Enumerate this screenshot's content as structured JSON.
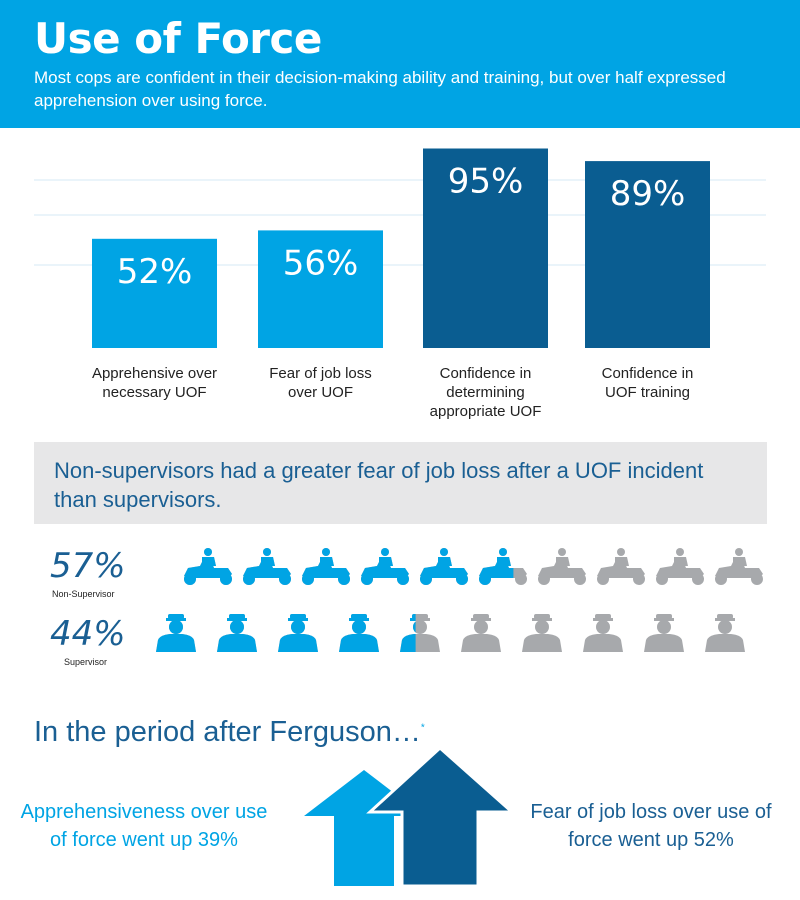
{
  "header": {
    "title": "Use of Force",
    "subtitle": "Most cops are confident in their decision-making ability and training, but over half expressed apprehension over using force."
  },
  "chart_data": [
    {
      "type": "bar",
      "categories": [
        "Apprehensive over necessary UOF",
        "Fear of job loss over UOF",
        "Confidence in determining appropriate UOF",
        "Confidence in UOF training"
      ],
      "category_lines": [
        [
          "Apprehensive over",
          "necessary UOF"
        ],
        [
          "Fear of job loss",
          "over UOF"
        ],
        [
          "Confidence in",
          "determining",
          "appropriate UOF"
        ],
        [
          "Confidence in",
          "UOF training"
        ]
      ],
      "values": [
        52,
        56,
        95,
        89
      ],
      "value_labels": [
        "52%",
        "56%",
        "95%",
        "89%"
      ],
      "bar_colors": [
        "#00a4e4",
        "#00a4e4",
        "#0a5d91",
        "#0a5d91"
      ],
      "ylim": [
        0,
        100
      ],
      "grid": true
    },
    {
      "type": "pictograph",
      "rows": [
        {
          "value": 57,
          "label": "57%",
          "caption": "Non-Supervisor",
          "icon": "police-motorcycle-icon",
          "total_icons": 10
        },
        {
          "value": 44,
          "label": "44%",
          "caption": "Supervisor",
          "icon": "officer-bust-icon",
          "total_icons": 10
        }
      ],
      "fill_color": "#00a4e4",
      "empty_color": "#a7a9ac"
    }
  ],
  "banner": {
    "text": "Non-supervisors had a greater fear of job loss after a UOF incident than supervisors."
  },
  "ferguson": {
    "title": "In the period after Ferguson…",
    "footnote_mark": "*",
    "left_text": "Apprehensiveness over use of force went up 39%",
    "right_text": "Fear of job loss over use of force went up 52%",
    "left_arrow_color": "#00a4e4",
    "right_arrow_color": "#0a5d91"
  }
}
